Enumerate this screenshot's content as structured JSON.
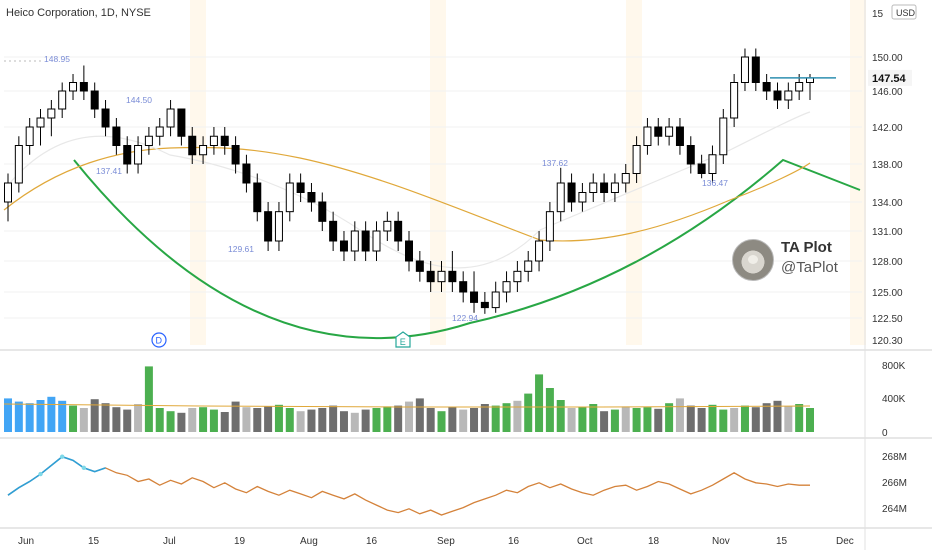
{
  "chart_data": {
    "type": "candlestick",
    "title": "Heico Corporation, 1D, NYSE",
    "currency": "USD",
    "last_price": "147.54",
    "price_axis_ticks": [
      "150.00",
      "146.00",
      "142.00",
      "138.00",
      "134.00",
      "131.00",
      "128.00",
      "125.00",
      "122.50",
      "120.30"
    ],
    "price_axis_top_cut": "15",
    "x_axis_labels": [
      "Jun",
      "15",
      "Jul",
      "19",
      "Aug",
      "16",
      "Sep",
      "16",
      "Oct",
      "18",
      "Nov",
      "15",
      "Dec"
    ],
    "volume_axis_ticks": [
      "800K",
      "400K",
      "0"
    ],
    "indicator_axis_ticks": [
      "268M",
      "266M",
      "264M"
    ],
    "annotations": [
      {
        "text": "148.95",
        "date": "Jun 8"
      },
      {
        "text": "144.50",
        "date": "Jun 23"
      },
      {
        "text": "137.41",
        "date": "Jun 14"
      },
      {
        "text": "129.61",
        "date": "Jul 20"
      },
      {
        "text": "137.62",
        "date": "Sep 20"
      },
      {
        "text": "122.94",
        "date": "Sep 7"
      },
      {
        "text": "136.47",
        "date": "Oct 28"
      }
    ],
    "event_markers": [
      {
        "letter": "D",
        "meaning": "dividend",
        "date": "Jun 28"
      },
      {
        "letter": "E",
        "meaning": "earnings",
        "date": "Aug 30"
      }
    ],
    "candles": [
      [
        134,
        137,
        132,
        136
      ],
      [
        136,
        141,
        135,
        140
      ],
      [
        140,
        143,
        139,
        142
      ],
      [
        142,
        144,
        140,
        143
      ],
      [
        143,
        145,
        141,
        144
      ],
      [
        144,
        147,
        143,
        146
      ],
      [
        146,
        148,
        145,
        147
      ],
      [
        147,
        149,
        145,
        146
      ],
      [
        146,
        147,
        143,
        144
      ],
      [
        144,
        145,
        141,
        142
      ],
      [
        142,
        143,
        139,
        140
      ],
      [
        140,
        141,
        137,
        138
      ],
      [
        138,
        141,
        137,
        140
      ],
      [
        140,
        142,
        139,
        141
      ],
      [
        141,
        143,
        140,
        142
      ],
      [
        142,
        145,
        141,
        144
      ],
      [
        144,
        144,
        140,
        141
      ],
      [
        141,
        142,
        138,
        139
      ],
      [
        139,
        141,
        138,
        140
      ],
      [
        140,
        142,
        139,
        141
      ],
      [
        141,
        142,
        139,
        140
      ],
      [
        140,
        141,
        137,
        138
      ],
      [
        138,
        139,
        135,
        136
      ],
      [
        136,
        137,
        132,
        133
      ],
      [
        133,
        134,
        129,
        130
      ],
      [
        130,
        134,
        129,
        133
      ],
      [
        133,
        137,
        132,
        136
      ],
      [
        136,
        137,
        134,
        135
      ],
      [
        135,
        136,
        133,
        134
      ],
      [
        134,
        135,
        131,
        132
      ],
      [
        132,
        133,
        129,
        130
      ],
      [
        130,
        131,
        128,
        129
      ],
      [
        129,
        132,
        128,
        131
      ],
      [
        131,
        132,
        128,
        129
      ],
      [
        129,
        132,
        128,
        131
      ],
      [
        131,
        133,
        130,
        132
      ],
      [
        132,
        133,
        129,
        130
      ],
      [
        130,
        131,
        127,
        128
      ],
      [
        128,
        129,
        126,
        127
      ],
      [
        127,
        128,
        125,
        126
      ],
      [
        126,
        128,
        125,
        127
      ],
      [
        127,
        129,
        125,
        126
      ],
      [
        126,
        127,
        124,
        125
      ],
      [
        125,
        127,
        123,
        124
      ],
      [
        124,
        125,
        122.9,
        123.5
      ],
      [
        123.5,
        126,
        123,
        125
      ],
      [
        125,
        127,
        124,
        126
      ],
      [
        126,
        128,
        125,
        127
      ],
      [
        127,
        129,
        126,
        128
      ],
      [
        128,
        131,
        127,
        130
      ],
      [
        130,
        134,
        129,
        133
      ],
      [
        133,
        137.6,
        132,
        136
      ],
      [
        136,
        137,
        133,
        134
      ],
      [
        134,
        136,
        133,
        135
      ],
      [
        135,
        137,
        134,
        136
      ],
      [
        136,
        137,
        134,
        135
      ],
      [
        135,
        137,
        134,
        136
      ],
      [
        136,
        138,
        135,
        137
      ],
      [
        137,
        141,
        136,
        140
      ],
      [
        140,
        143,
        139,
        142
      ],
      [
        142,
        143,
        140,
        141
      ],
      [
        141,
        143,
        140,
        142
      ],
      [
        142,
        143,
        139,
        140
      ],
      [
        140,
        141,
        137,
        138
      ],
      [
        138,
        139,
        136.5,
        137
      ],
      [
        137,
        140,
        136,
        139
      ],
      [
        139,
        144,
        138,
        143
      ],
      [
        143,
        148,
        142,
        147
      ],
      [
        147,
        151,
        146,
        150
      ],
      [
        150,
        151,
        146,
        147
      ],
      [
        147,
        148,
        145,
        146
      ],
      [
        146,
        147,
        144,
        145
      ],
      [
        145,
        147,
        144,
        146
      ],
      [
        146,
        148,
        145,
        147
      ],
      [
        147,
        148,
        145,
        147.54
      ]
    ],
    "volume": [
      420,
      380,
      360,
      400,
      440,
      390,
      330,
      300,
      410,
      360,
      310,
      280,
      350,
      820,
      300,
      260,
      240,
      300,
      310,
      280,
      250,
      380,
      310,
      300,
      320,
      340,
      300,
      260,
      280,
      300,
      330,
      260,
      240,
      280,
      300,
      320,
      330,
      380,
      420,
      300,
      260,
      310,
      280,
      300,
      350,
      330,
      360,
      390,
      480,
      720,
      550,
      400,
      300,
      310,
      350,
      260,
      280,
      320,
      300,
      310,
      290,
      360,
      420,
      330,
      300,
      340,
      280,
      300,
      330,
      310,
      360,
      390,
      320,
      350,
      300
    ],
    "indicator_values": [
      265.2,
      265.8,
      266.3,
      266.9,
      267.6,
      268.3,
      268.0,
      267.4,
      267.1,
      267.4,
      267.0,
      266.8,
      266.3,
      266.5,
      266.0,
      266.4,
      266.1,
      266.6,
      266.3,
      265.8,
      266.2,
      265.7,
      265.4,
      265.9,
      265.5,
      265.2,
      265.6,
      265.3,
      265.0,
      265.5,
      265.2,
      264.9,
      265.3,
      264.8,
      264.4,
      264.0,
      263.8,
      264.1,
      263.7,
      264.0,
      263.6,
      263.9,
      264.2,
      264.6,
      264.9,
      265.2,
      265.6,
      265.4,
      265.9,
      266.2,
      265.8,
      266.1,
      265.7,
      265.4,
      265.2,
      265.6,
      265.9,
      266.0,
      265.6,
      265.9,
      266.3,
      266.1,
      265.7,
      265.3,
      265.6,
      266.0,
      266.5,
      267.0,
      266.5,
      266.2,
      266.1,
      265.9,
      266.1,
      266.0,
      266.0
    ],
    "colors": {
      "up_body": "#ffffff",
      "down_body": "#000000",
      "green_curve": "#28a745",
      "ma_line": "#e0a83a",
      "vol_up": "#4caf50",
      "vol_down": "#6e6e6e",
      "vol_light": "#b8b8b8",
      "vol_blue": "#42a5f5",
      "indicator": "#d4823a",
      "indicator_hi": "#2e9fd6",
      "last_price_line": "#2e8fb0",
      "event_blue": "#2962ff",
      "event_teal": "#26a69a"
    }
  },
  "brand": {
    "name": "TA Plot",
    "handle": "@TaPlot"
  }
}
